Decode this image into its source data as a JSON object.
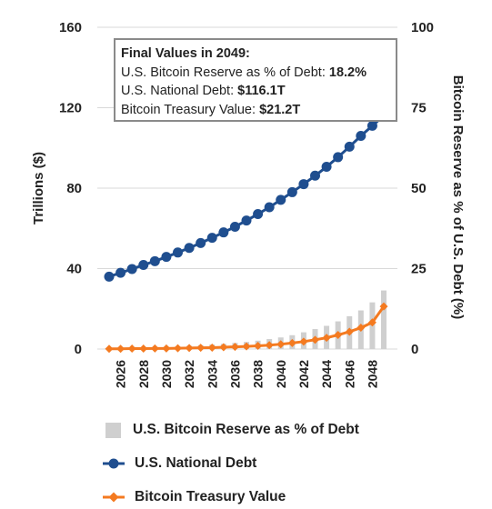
{
  "chart_data": {
    "type": "line",
    "x": [
      2025,
      2026,
      2027,
      2028,
      2029,
      2030,
      2031,
      2032,
      2033,
      2034,
      2035,
      2036,
      2037,
      2038,
      2039,
      2040,
      2041,
      2042,
      2043,
      2044,
      2045,
      2046,
      2047,
      2048,
      2049
    ],
    "x_tick_labels": [
      "2026",
      "2028",
      "2030",
      "2032",
      "2034",
      "2036",
      "2038",
      "2040",
      "2042",
      "2044",
      "2046",
      "2048"
    ],
    "y_left": {
      "label": "Trillions ($)",
      "range": [
        0,
        160
      ],
      "ticks": [
        "0",
        "40",
        "80",
        "120",
        "160"
      ]
    },
    "y_right": {
      "label": "Bitcoin Reserve as % of U.S. Debt (%)",
      "range": [
        0,
        100
      ],
      "ticks": [
        "0",
        "25",
        "50",
        "75",
        "100"
      ]
    },
    "grid": "horizontal",
    "legend_position": "bottom",
    "series": [
      {
        "name": "U.S. Bitcoin Reserve as % of Debt",
        "type": "bar",
        "axis": "right",
        "color": "#cfcfcf",
        "values": [
          0.2,
          0.3,
          0.4,
          0.5,
          0.6,
          0.7,
          0.8,
          1.0,
          1.2,
          1.4,
          1.6,
          1.9,
          2.2,
          2.6,
          3.1,
          3.6,
          4.3,
          5.2,
          6.2,
          7.2,
          8.6,
          10.2,
          12.0,
          14.5,
          18.2
        ]
      },
      {
        "name": "U.S. National Debt",
        "type": "line",
        "axis": "left",
        "color": "#1f4e8f",
        "values": [
          36.0,
          37.9,
          39.8,
          41.8,
          43.7,
          45.8,
          48.0,
          50.3,
          52.7,
          55.3,
          58.0,
          60.8,
          63.9,
          67.1,
          70.5,
          74.2,
          78.0,
          82.0,
          86.2,
          90.6,
          95.4,
          100.6,
          106.0,
          111.0,
          116.1
        ]
      },
      {
        "name": "Bitcoin Treasury Value",
        "type": "line",
        "axis": "left",
        "color": "#f47a20",
        "values": [
          0.1,
          0.1,
          0.2,
          0.2,
          0.3,
          0.3,
          0.4,
          0.5,
          0.6,
          0.7,
          0.9,
          1.1,
          1.3,
          1.6,
          1.9,
          2.4,
          3.0,
          3.7,
          4.6,
          5.6,
          7.0,
          8.6,
          10.6,
          13.2,
          21.2
        ]
      }
    ],
    "annotation": {
      "title": "Final Values in 2049:",
      "lines": [
        {
          "label": "U.S. Bitcoin Reserve as % of Debt: ",
          "value": "18.2%"
        },
        {
          "label": "U.S. National Debt: ",
          "value": "$116.1T"
        },
        {
          "label": "Bitcoin Treasury Value: ",
          "value": "$21.2T"
        }
      ]
    }
  },
  "legend": {
    "reserve_pct": "U.S. Bitcoin Reserve as % of Debt",
    "debt": "U.S. National Debt",
    "treasury": "Bitcoin Treasury Value"
  },
  "colors": {
    "debt": "#1f4e8f",
    "treasury": "#f47a20",
    "bars": "#cfcfcf",
    "grid": "#d9d9d9",
    "box_border": "#8a8a8a"
  }
}
